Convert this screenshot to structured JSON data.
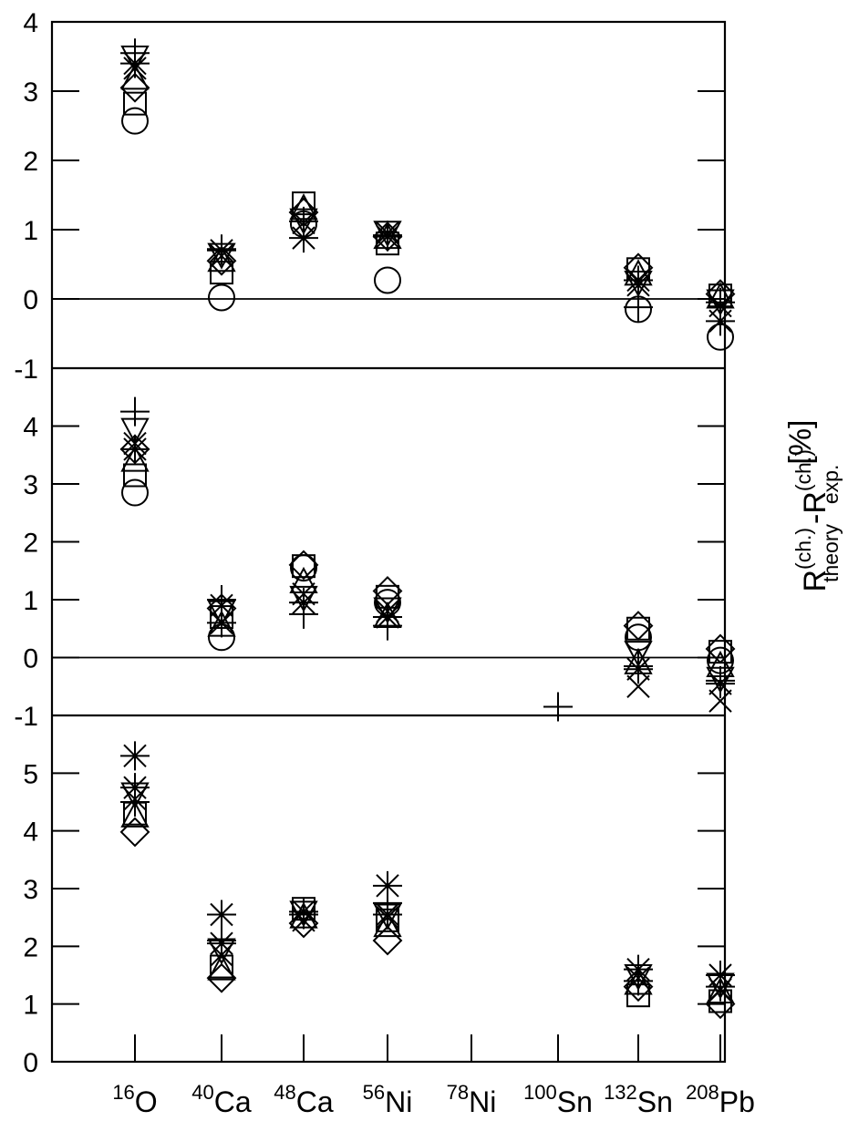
{
  "chart_data": {
    "type": "scatter",
    "ylabel_parts": {
      "r1": "R",
      "r1_sup": "(ch.)",
      "r1_sub": "theory",
      "dash": "-",
      "r2": "R",
      "r2_sup": "(ch.)",
      "r2_sub": "exp.",
      "unit": "[%]"
    },
    "x_categories": [
      {
        "mass": "16",
        "element": "O"
      },
      {
        "mass": "40",
        "element": "Ca"
      },
      {
        "mass": "48",
        "element": "Ca"
      },
      {
        "mass": "56",
        "element": "Ni"
      },
      {
        "mass": "78",
        "element": "Ni"
      },
      {
        "mass": "100",
        "element": "Sn"
      },
      {
        "mass": "132",
        "element": "Sn"
      },
      {
        "mass": "208",
        "element": "Pb"
      }
    ],
    "marker_types": [
      "circle",
      "square",
      "diamond",
      "triangle-up",
      "triangle-down",
      "plus",
      "cross",
      "asterisk"
    ],
    "panels": [
      {
        "ylim": [
          -1,
          4
        ],
        "yticks": [
          "-1",
          "0",
          "1",
          "2",
          "3",
          "4"
        ],
        "zero_line": true,
        "points": [
          {
            "marker": "circle",
            "x": 0,
            "y": 2.57
          },
          {
            "marker": "square",
            "x": 0,
            "y": 2.82
          },
          {
            "marker": "diamond",
            "x": 0,
            "y": 3.05
          },
          {
            "marker": "triangle-up",
            "x": 0,
            "y": 3.18
          },
          {
            "marker": "triangle-down",
            "x": 0,
            "y": 3.5
          },
          {
            "marker": "plus",
            "x": 0,
            "y": 3.55
          },
          {
            "marker": "cross",
            "x": 0,
            "y": 3.33
          },
          {
            "marker": "asterisk",
            "x": 0,
            "y": 3.4
          },
          {
            "marker": "circle",
            "x": 1,
            "y": 0.02
          },
          {
            "marker": "square",
            "x": 1,
            "y": 0.38
          },
          {
            "marker": "diamond",
            "x": 1,
            "y": 0.55
          },
          {
            "marker": "triangle-up",
            "x": 1,
            "y": 0.55
          },
          {
            "marker": "triangle-down",
            "x": 1,
            "y": 0.65
          },
          {
            "marker": "plus",
            "x": 1,
            "y": 0.72
          },
          {
            "marker": "cross",
            "x": 1,
            "y": 0.62
          },
          {
            "marker": "asterisk",
            "x": 1,
            "y": 0.7
          },
          {
            "marker": "circle",
            "x": 2,
            "y": 1.08
          },
          {
            "marker": "square",
            "x": 2,
            "y": 1.38
          },
          {
            "marker": "diamond",
            "x": 2,
            "y": 1.25
          },
          {
            "marker": "triangle-up",
            "x": 2,
            "y": 1.3
          },
          {
            "marker": "triangle-down",
            "x": 2,
            "y": 1.15
          },
          {
            "marker": "plus",
            "x": 2,
            "y": 1.12
          },
          {
            "marker": "cross",
            "x": 2,
            "y": 1.1
          },
          {
            "marker": "asterisk",
            "x": 2,
            "y": 0.88
          },
          {
            "marker": "circle",
            "x": 3,
            "y": 0.27
          },
          {
            "marker": "square",
            "x": 3,
            "y": 0.8
          },
          {
            "marker": "diamond",
            "x": 3,
            "y": 0.9
          },
          {
            "marker": "triangle-up",
            "x": 3,
            "y": 0.88
          },
          {
            "marker": "triangle-down",
            "x": 3,
            "y": 0.97
          },
          {
            "marker": "plus",
            "x": 3,
            "y": 0.92
          },
          {
            "marker": "cross",
            "x": 3,
            "y": 0.95
          },
          {
            "marker": "asterisk",
            "x": 3,
            "y": 0.9
          },
          {
            "marker": "circle",
            "x": 6,
            "y": -0.15
          },
          {
            "marker": "square",
            "x": 6,
            "y": 0.43
          },
          {
            "marker": "diamond",
            "x": 6,
            "y": 0.45
          },
          {
            "marker": "triangle-up",
            "x": 6,
            "y": 0.35
          },
          {
            "marker": "triangle-down",
            "x": 6,
            "y": 0.25
          },
          {
            "marker": "plus",
            "x": 6,
            "y": -0.12
          },
          {
            "marker": "cross",
            "x": 6,
            "y": 0.2
          },
          {
            "marker": "asterisk",
            "x": 6,
            "y": 0.27
          },
          {
            "marker": "circle",
            "x": 7,
            "y": -0.55
          },
          {
            "marker": "square",
            "x": 7,
            "y": 0.05
          },
          {
            "marker": "diamond",
            "x": 7,
            "y": 0.07
          },
          {
            "marker": "triangle-up",
            "x": 7,
            "y": 0.02
          },
          {
            "marker": "triangle-down",
            "x": 7,
            "y": -0.02
          },
          {
            "marker": "plus",
            "x": 7,
            "y": -0.05
          },
          {
            "marker": "cross",
            "x": 7,
            "y": -0.1
          },
          {
            "marker": "asterisk",
            "x": 7,
            "y": -0.32
          }
        ]
      },
      {
        "ylim": [
          -1,
          5
        ],
        "yticks": [
          "-1",
          "0",
          "1",
          "2",
          "3",
          "4"
        ],
        "zero_line": true,
        "points": [
          {
            "marker": "circle",
            "x": 0,
            "y": 2.85
          },
          {
            "marker": "square",
            "x": 0,
            "y": 3.15
          },
          {
            "marker": "diamond",
            "x": 0,
            "y": 3.6
          },
          {
            "marker": "triangle-up",
            "x": 0,
            "y": 3.4
          },
          {
            "marker": "triangle-down",
            "x": 0,
            "y": 3.95
          },
          {
            "marker": "plus",
            "x": 0,
            "y": 4.25
          },
          {
            "marker": "cross",
            "x": 0,
            "y": 3.7
          },
          {
            "marker": "asterisk",
            "x": 0,
            "y": 3.6
          },
          {
            "marker": "circle",
            "x": 1,
            "y": 0.35
          },
          {
            "marker": "square",
            "x": 1,
            "y": 0.7
          },
          {
            "marker": "diamond",
            "x": 1,
            "y": 0.85
          },
          {
            "marker": "triangle-up",
            "x": 1,
            "y": 0.55
          },
          {
            "marker": "triangle-down",
            "x": 1,
            "y": 0.8
          },
          {
            "marker": "plus",
            "x": 1,
            "y": 1.0
          },
          {
            "marker": "cross",
            "x": 1,
            "y": 0.9
          },
          {
            "marker": "asterisk",
            "x": 1,
            "y": 0.6
          },
          {
            "marker": "circle",
            "x": 2,
            "y": 1.55
          },
          {
            "marker": "square",
            "x": 2,
            "y": 1.58
          },
          {
            "marker": "diamond",
            "x": 2,
            "y": 1.6
          },
          {
            "marker": "triangle-up",
            "x": 2,
            "y": 1.3
          },
          {
            "marker": "triangle-down",
            "x": 2,
            "y": 1.05
          },
          {
            "marker": "plus",
            "x": 2,
            "y": 0.75
          },
          {
            "marker": "cross",
            "x": 2,
            "y": 1.1
          },
          {
            "marker": "asterisk",
            "x": 2,
            "y": 0.95
          },
          {
            "marker": "circle",
            "x": 3,
            "y": 0.95
          },
          {
            "marker": "square",
            "x": 3,
            "y": 1.05
          },
          {
            "marker": "diamond",
            "x": 3,
            "y": 1.15
          },
          {
            "marker": "triangle-up",
            "x": 3,
            "y": 0.7
          },
          {
            "marker": "triangle-down",
            "x": 3,
            "y": 0.85
          },
          {
            "marker": "plus",
            "x": 3,
            "y": 0.55
          },
          {
            "marker": "cross",
            "x": 3,
            "y": 0.8
          },
          {
            "marker": "asterisk",
            "x": 3,
            "y": 0.7
          },
          {
            "marker": "plus",
            "x": 5,
            "y": -0.85
          },
          {
            "marker": "circle",
            "x": 6,
            "y": 0.35
          },
          {
            "marker": "square",
            "x": 6,
            "y": 0.5
          },
          {
            "marker": "diamond",
            "x": 6,
            "y": 0.55
          },
          {
            "marker": "triangle-up",
            "x": 6,
            "y": -0.1
          },
          {
            "marker": "triangle-down",
            "x": 6,
            "y": 0.1
          },
          {
            "marker": "plus",
            "x": 6,
            "y": -0.15
          },
          {
            "marker": "cross",
            "x": 6,
            "y": -0.5
          },
          {
            "marker": "asterisk",
            "x": 6,
            "y": -0.2
          },
          {
            "marker": "circle",
            "x": 7,
            "y": -0.05
          },
          {
            "marker": "square",
            "x": 7,
            "y": 0.1
          },
          {
            "marker": "diamond",
            "x": 7,
            "y": 0.15
          },
          {
            "marker": "triangle-up",
            "x": 7,
            "y": -0.15
          },
          {
            "marker": "triangle-down",
            "x": 7,
            "y": -0.35
          },
          {
            "marker": "plus",
            "x": 7,
            "y": -0.4
          },
          {
            "marker": "cross",
            "x": 7,
            "y": -0.75
          },
          {
            "marker": "asterisk",
            "x": 7,
            "y": -0.45
          }
        ]
      },
      {
        "ylim": [
          0,
          6
        ],
        "yticks": [
          "0",
          "1",
          "2",
          "3",
          "4",
          "5"
        ],
        "zero_line": false,
        "points": [
          {
            "marker": "diamond",
            "x": 0,
            "y": 3.98
          },
          {
            "marker": "square",
            "x": 0,
            "y": 4.3
          },
          {
            "marker": "triangle-up",
            "x": 0,
            "y": 4.25
          },
          {
            "marker": "triangle-down",
            "x": 0,
            "y": 4.65
          },
          {
            "marker": "plus",
            "x": 0,
            "y": 4.5
          },
          {
            "marker": "cross",
            "x": 0,
            "y": 4.55
          },
          {
            "marker": "asterisk",
            "x": 0,
            "y": 4.75
          },
          {
            "marker": "asterisk",
            "x": 0,
            "y": 5.3
          },
          {
            "marker": "diamond",
            "x": 1,
            "y": 1.45
          },
          {
            "marker": "square",
            "x": 1,
            "y": 1.65
          },
          {
            "marker": "triangle-up",
            "x": 1,
            "y": 1.6
          },
          {
            "marker": "triangle-down",
            "x": 1,
            "y": 1.95
          },
          {
            "marker": "plus",
            "x": 1,
            "y": 2.1
          },
          {
            "marker": "cross",
            "x": 1,
            "y": 1.85
          },
          {
            "marker": "asterisk",
            "x": 1,
            "y": 2.05
          },
          {
            "marker": "asterisk",
            "x": 1,
            "y": 2.55
          },
          {
            "marker": "diamond",
            "x": 2,
            "y": 2.4
          },
          {
            "marker": "square",
            "x": 2,
            "y": 2.65
          },
          {
            "marker": "triangle-up",
            "x": 2,
            "y": 2.5
          },
          {
            "marker": "triangle-down",
            "x": 2,
            "y": 2.6
          },
          {
            "marker": "plus",
            "x": 2,
            "y": 2.55
          },
          {
            "marker": "cross",
            "x": 2,
            "y": 2.45
          },
          {
            "marker": "asterisk",
            "x": 2,
            "y": 2.6
          },
          {
            "marker": "diamond",
            "x": 3,
            "y": 2.1
          },
          {
            "marker": "square",
            "x": 3,
            "y": 2.45
          },
          {
            "marker": "triangle-up",
            "x": 3,
            "y": 2.35
          },
          {
            "marker": "triangle-down",
            "x": 3,
            "y": 2.55
          },
          {
            "marker": "plus",
            "x": 3,
            "y": 2.75
          },
          {
            "marker": "cross",
            "x": 3,
            "y": 2.5
          },
          {
            "marker": "asterisk",
            "x": 3,
            "y": 2.55
          },
          {
            "marker": "asterisk",
            "x": 3,
            "y": 3.05
          },
          {
            "marker": "square",
            "x": 6,
            "y": 1.15
          },
          {
            "marker": "diamond",
            "x": 6,
            "y": 1.3
          },
          {
            "marker": "triangle-up",
            "x": 6,
            "y": 1.35
          },
          {
            "marker": "triangle-down",
            "x": 6,
            "y": 1.5
          },
          {
            "marker": "plus",
            "x": 6,
            "y": 1.4
          },
          {
            "marker": "cross",
            "x": 6,
            "y": 1.45
          },
          {
            "marker": "asterisk",
            "x": 6,
            "y": 1.6
          },
          {
            "marker": "diamond",
            "x": 7,
            "y": 1.0
          },
          {
            "marker": "square",
            "x": 7,
            "y": 1.05
          },
          {
            "marker": "triangle-up",
            "x": 7,
            "y": 1.2
          },
          {
            "marker": "triangle-down",
            "x": 7,
            "y": 1.35
          },
          {
            "marker": "plus",
            "x": 7,
            "y": 1.3
          },
          {
            "marker": "cross",
            "x": 7,
            "y": 1.25
          },
          {
            "marker": "asterisk",
            "x": 7,
            "y": 1.5
          }
        ]
      }
    ]
  }
}
